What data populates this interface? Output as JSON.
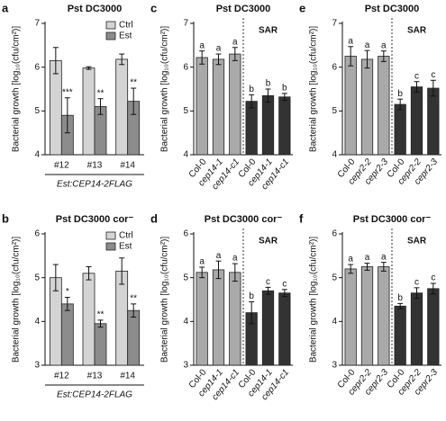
{
  "chart_data": [
    {
      "type": "grouped",
      "panel": "a",
      "title": "Pst DC3000",
      "y_label": "Bacterial growth [log₁₀(cfu/cm²)]",
      "categories": [
        "#12",
        "#13",
        "#14"
      ],
      "x_label": "Est:CEP14-2FLAG",
      "ylim": [
        4,
        7
      ],
      "yticks": [
        4,
        5,
        6,
        7
      ],
      "series": [
        {
          "name": "Ctrl",
          "color": "#d4d4d4",
          "values": [
            6.15,
            5.98,
            6.18
          ],
          "errors": [
            0.3,
            0.03,
            0.12
          ]
        },
        {
          "name": "Est",
          "color": "#8c8c8c",
          "values": [
            4.9,
            5.1,
            5.22
          ],
          "errors": [
            0.4,
            0.18,
            0.3
          ],
          "annotations": [
            "***",
            "**",
            "**"
          ]
        }
      ]
    },
    {
      "type": "grouped",
      "panel": "b",
      "title": "Pst DC3000 cor⁻",
      "y_label": "Bacterial growth [log₁₀(cfu/cm²)]",
      "categories": [
        "#12",
        "#13",
        "#14"
      ],
      "x_label": "Est:CEP14-2FLAG",
      "ylim": [
        3,
        6
      ],
      "yticks": [
        3,
        4,
        5,
        6
      ],
      "series": [
        {
          "name": "Ctrl",
          "color": "#d4d4d4",
          "values": [
            5.0,
            5.1,
            5.15
          ],
          "errors": [
            0.3,
            0.15,
            0.3
          ]
        },
        {
          "name": "Est",
          "color": "#8c8c8c",
          "values": [
            4.4,
            3.95,
            4.25
          ],
          "errors": [
            0.15,
            0.08,
            0.15
          ],
          "annotations": [
            "*",
            "**",
            "**"
          ]
        }
      ]
    },
    {
      "type": "bar",
      "panel": "c",
      "title": "Pst DC3000",
      "y_label": "Bacterial growth [log₁₀(cfu/cm²)]",
      "annotation": "SAR",
      "categories": [
        "Col-0",
        "cep14-1",
        "cep14-c1",
        "Col-0",
        "cep14-1",
        "cep14-c1"
      ],
      "values": [
        6.22,
        6.18,
        6.3,
        5.22,
        5.35,
        5.32
      ],
      "errors": [
        0.15,
        0.12,
        0.15,
        0.15,
        0.15,
        0.08
      ],
      "letters": [
        "a",
        "a",
        "a",
        "b",
        "b",
        "b"
      ],
      "colors": [
        "#a9a9a9",
        "#a9a9a9",
        "#a9a9a9",
        "#333333",
        "#333333",
        "#333333"
      ],
      "ylim": [
        4,
        7
      ],
      "yticks": [
        4,
        5,
        6,
        7
      ]
    },
    {
      "type": "bar",
      "panel": "d",
      "title": "Pst DC3000 cor⁻",
      "y_label": "Bacterial growth [log₁₀(cfu/cm²)]",
      "annotation": "SAR",
      "categories": [
        "Col-0",
        "cep14-1",
        "cep14-c1",
        "Col-0",
        "cep14-1",
        "cep14-c1"
      ],
      "values": [
        5.12,
        5.18,
        5.12,
        4.2,
        4.7,
        4.65
      ],
      "errors": [
        0.12,
        0.2,
        0.2,
        0.25,
        0.08,
        0.08
      ],
      "letters": [
        "a",
        "a",
        "a",
        "b",
        "c",
        "c"
      ],
      "colors": [
        "#a9a9a9",
        "#a9a9a9",
        "#a9a9a9",
        "#333333",
        "#333333",
        "#333333"
      ],
      "ylim": [
        3,
        6
      ],
      "yticks": [
        3,
        4,
        5,
        6
      ]
    },
    {
      "type": "bar",
      "panel": "e",
      "title": "Pst DC3000",
      "y_label": "Bacterial growth [log₁₀(cfu/cm²)]",
      "annotation": "SAR",
      "categories": [
        "Col-0",
        "cepr2-2",
        "cepr2-3",
        "Col-0",
        "cepr2-2",
        "cepr2-3"
      ],
      "values": [
        6.25,
        6.18,
        6.25,
        5.15,
        5.55,
        5.52
      ],
      "errors": [
        0.22,
        0.2,
        0.12,
        0.12,
        0.12,
        0.18
      ],
      "letters": [
        "a",
        "a",
        "a",
        "b",
        "c",
        "c"
      ],
      "colors": [
        "#a9a9a9",
        "#a9a9a9",
        "#a9a9a9",
        "#333333",
        "#333333",
        "#333333"
      ],
      "ylim": [
        4,
        7
      ],
      "yticks": [
        4,
        5,
        6,
        7
      ]
    },
    {
      "type": "bar",
      "panel": "f",
      "title": "Pst DC3000 cor⁻",
      "y_label": "Bacterial growth [log₁₀(cfu/cm²)]",
      "annotation": "SAR",
      "categories": [
        "Col-0",
        "cepr2-2",
        "cepr2-3",
        "Col-0",
        "cepr2-2",
        "cepr2-3"
      ],
      "values": [
        5.2,
        5.25,
        5.25,
        4.35,
        4.65,
        4.75
      ],
      "errors": [
        0.1,
        0.08,
        0.1,
        0.06,
        0.12,
        0.12
      ],
      "letters": [
        "a",
        "a",
        "a",
        "b",
        "c",
        "c"
      ],
      "colors": [
        "#a9a9a9",
        "#a9a9a9",
        "#a9a9a9",
        "#333333",
        "#333333",
        "#333333"
      ],
      "ylim": [
        3,
        6
      ],
      "yticks": [
        3,
        4,
        5,
        6
      ]
    }
  ]
}
